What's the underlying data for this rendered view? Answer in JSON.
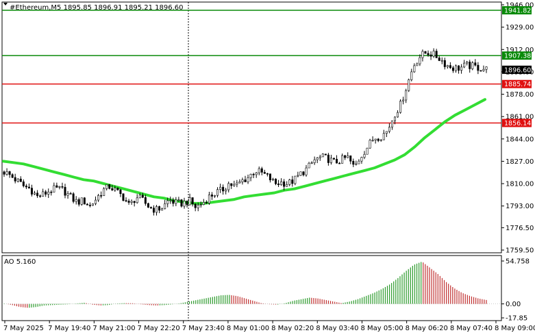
{
  "main_panel": {
    "header": "#Ethereum,M5  1895.85 1896.91 1895.21 1896.60",
    "y_labels": [
      "1946.00",
      "1929.00",
      "1912.00",
      "1895.00",
      "1878.00",
      "1861.00",
      "1844.00",
      "1827.00",
      "1810.00",
      "1793.00",
      "1776.50",
      "1759.50"
    ],
    "levels": [
      {
        "value": 1941.82,
        "label": "1941.82",
        "color": "#0a8a0a"
      },
      {
        "value": 1907.38,
        "label": "1907.38",
        "color": "#0a8a0a"
      },
      {
        "value": 1885.74,
        "label": "1885.74",
        "color": "#e01010"
      },
      {
        "value": 1856.14,
        "label": "1856.14",
        "color": "#e01010"
      }
    ],
    "current_price": {
      "value": 1896.6,
      "label": "1896.60",
      "color": "#000000"
    },
    "ma_color": "#33dd33"
  },
  "ao_panel": {
    "header": "AO 5.160",
    "y_labels": [
      "54.758",
      "0.00",
      "-17.85"
    ]
  },
  "x_labels": [
    "7 May 2025",
    "7 May 19:40",
    "7 May 21:00",
    "7 May 22:20",
    "7 May 23:40",
    "8 May 01:00",
    "8 May 02:20",
    "8 May 03:40",
    "8 May 05:00",
    "8 May 06:20",
    "8 May 07:40",
    "8 May 09:00"
  ],
  "chart_data": {
    "type": "candlestick",
    "symbol": "#Ethereum",
    "timeframe": "M5",
    "price_ylim": [
      1759.5,
      1946.0
    ],
    "ao_ylim": [
      -17.85,
      54.758
    ],
    "close_path": [
      1819,
      1816,
      1812,
      1808,
      1806,
      1800,
      1802,
      1805,
      1806,
      1805,
      1800,
      1796,
      1797,
      1793,
      1799,
      1805,
      1808,
      1804,
      1800,
      1793,
      1800,
      1797,
      1792,
      1790,
      1792,
      1798,
      1795,
      1795,
      1797,
      1792,
      1795,
      1800,
      1803,
      1805,
      1810,
      1808,
      1812,
      1815,
      1820,
      1818,
      1815,
      1810,
      1811,
      1810,
      1813,
      1818,
      1822,
      1828,
      1830,
      1829,
      1826,
      1828,
      1830,
      1822,
      1831,
      1838,
      1845,
      1846,
      1850,
      1862,
      1870,
      1885,
      1900,
      1907,
      1910,
      1908,
      1905,
      1900,
      1898,
      1898,
      1900,
      1899,
      1898,
      1897
    ],
    "ma_path": [
      1827,
      1826,
      1825,
      1823,
      1821,
      1819,
      1817,
      1815,
      1813,
      1812,
      1810,
      1808,
      1806,
      1804,
      1802,
      1800,
      1799,
      1797,
      1796,
      1795,
      1795,
      1796,
      1797,
      1798,
      1800,
      1801,
      1802,
      1803,
      1805,
      1806,
      1808,
      1810,
      1812,
      1814,
      1816,
      1818,
      1820,
      1822,
      1825,
      1828,
      1832,
      1838,
      1845,
      1851,
      1857,
      1862,
      1866,
      1870,
      1874
    ],
    "ao_path": [
      0.5,
      -1.5,
      -4,
      -5,
      -4,
      -2,
      -1.5,
      -1,
      -0.5,
      0.5,
      1.5,
      -1,
      -2,
      -1.5,
      0.5,
      1,
      0.8,
      -0.5,
      -1.5,
      -2,
      -1.5,
      -0.5,
      1,
      3,
      5,
      7,
      9,
      11,
      11.5,
      10,
      7,
      4,
      1,
      -0.5,
      -1,
      1,
      4,
      6,
      8,
      7,
      5,
      3,
      1,
      3,
      6,
      10,
      14,
      19,
      25,
      33,
      42,
      50,
      54,
      46,
      38,
      28,
      20,
      14,
      10,
      7,
      5
    ]
  }
}
